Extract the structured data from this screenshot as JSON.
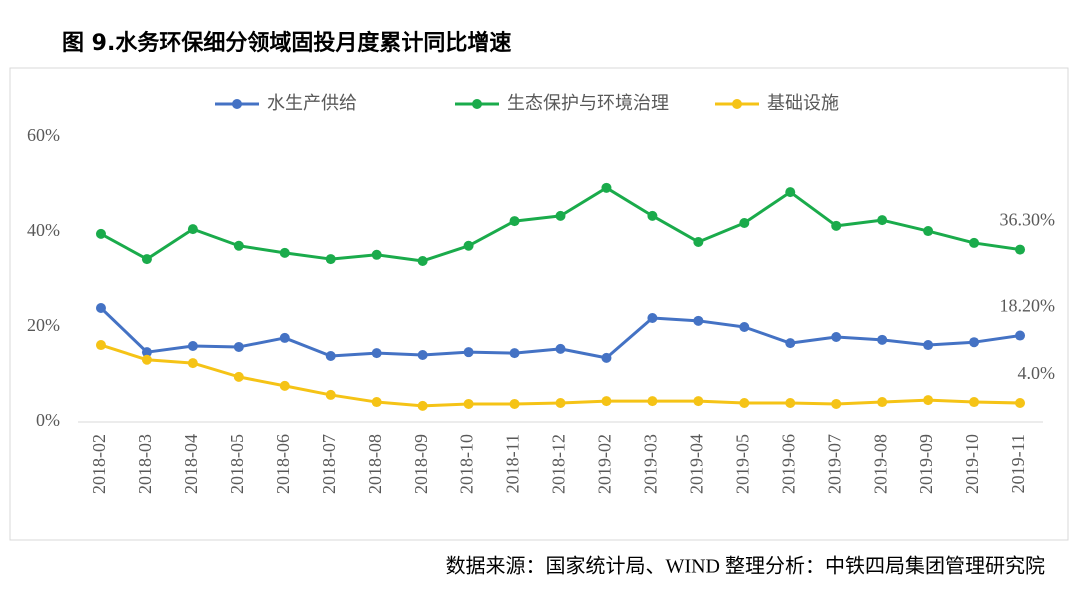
{
  "chart_data": {
    "type": "line",
    "title": "图 9.水务环保细分领域固投月度累计同比增速",
    "source": "数据来源：国家统计局、WIND   整理分析：中铁四局集团管理研究院",
    "categories": [
      "2018-02",
      "2018-03",
      "2018-04",
      "2018-05",
      "2018-06",
      "2018-07",
      "2018-08",
      "2018-09",
      "2018-10",
      "2018-11",
      "2018-12",
      "2019-02",
      "2019-03",
      "2019-04",
      "2019-05",
      "2019-06",
      "2019-07",
      "2019-08",
      "2019-09",
      "2019-10",
      "2019-11"
    ],
    "series": [
      {
        "name": "水生产供给",
        "color": "#4472c4",
        "values": [
          24.0,
          14.7,
          16.0,
          15.8,
          17.7,
          13.9,
          14.5,
          14.1,
          14.7,
          14.5,
          15.4,
          13.5,
          21.9,
          21.3,
          20.0,
          16.6,
          17.9,
          17.3,
          16.2,
          16.8,
          18.2
        ],
        "value_labels": [
          null,
          null,
          null,
          null,
          null,
          null,
          null,
          null,
          null,
          null,
          null,
          null,
          null,
          null,
          null,
          null,
          null,
          null,
          null,
          null,
          "18.20%"
        ]
      },
      {
        "name": "生态保护与环境治理",
        "color": "#1aab4b",
        "values": [
          39.6,
          34.3,
          40.6,
          37.1,
          35.6,
          34.3,
          35.2,
          33.9,
          37.1,
          42.3,
          43.4,
          49.3,
          43.4,
          37.9,
          41.9,
          48.4,
          41.3,
          42.5,
          40.2,
          37.7,
          36.3
        ],
        "value_labels": [
          null,
          null,
          null,
          null,
          null,
          null,
          null,
          null,
          null,
          null,
          null,
          null,
          null,
          null,
          null,
          null,
          null,
          null,
          null,
          null,
          "36.30%"
        ]
      },
      {
        "name": "基础设施",
        "color": "#f5c316",
        "values": [
          16.2,
          13.1,
          12.4,
          9.5,
          7.6,
          5.7,
          4.2,
          3.4,
          3.8,
          3.8,
          4.0,
          4.4,
          4.4,
          4.4,
          4.0,
          4.0,
          3.8,
          4.2,
          4.6,
          4.2,
          4.0
        ],
        "value_labels": [
          null,
          null,
          null,
          null,
          null,
          null,
          null,
          null,
          null,
          null,
          null,
          null,
          null,
          null,
          null,
          null,
          null,
          null,
          null,
          null,
          "4.0%"
        ]
      }
    ],
    "ylim": [
      0,
      60
    ],
    "yticks": [
      {
        "value": 0,
        "label": "0%"
      },
      {
        "value": 20,
        "label": "20%"
      },
      {
        "value": 40,
        "label": "40%"
      },
      {
        "value": 60,
        "label": "60%"
      }
    ],
    "grid": false,
    "legend": "top"
  }
}
